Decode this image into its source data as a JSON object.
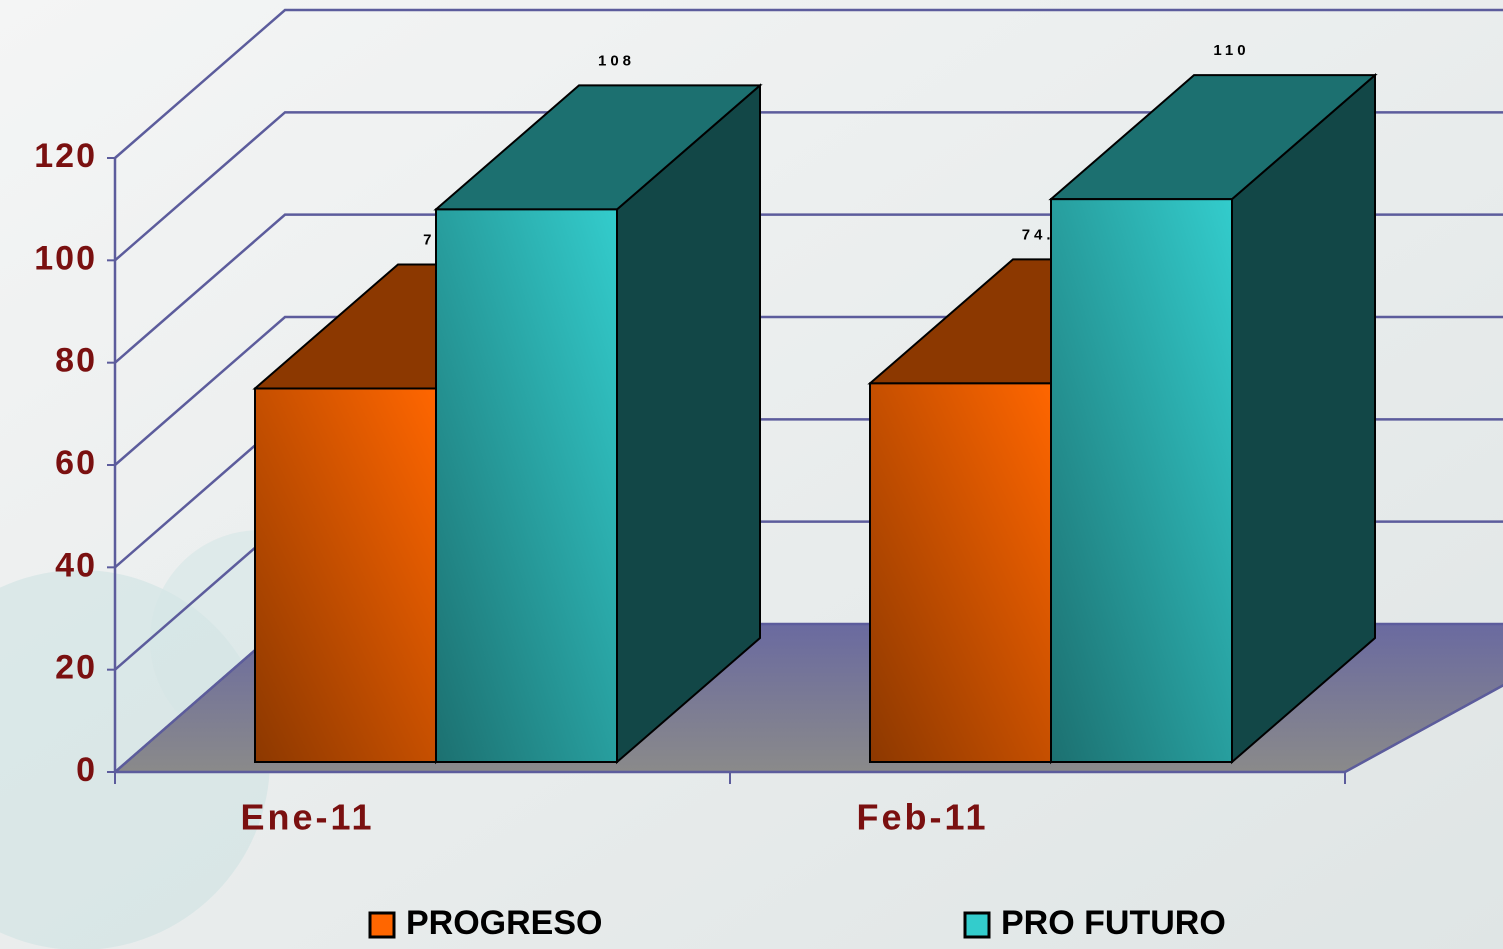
{
  "chart_data": {
    "type": "bar3d",
    "categories": [
      "Ene-11",
      "Feb-11"
    ],
    "series": [
      {
        "name": "PROGRESO",
        "color": "#ff6600",
        "values": [
          73,
          74
        ],
        "value_labels": [
          "73",
          "74.00"
        ]
      },
      {
        "name": "PRO FUTURO",
        "color": "#33cccc",
        "values": [
          108,
          110
        ],
        "value_labels": [
          "108",
          "110"
        ]
      }
    ],
    "ylim": [
      0,
      120
    ],
    "yticks": [
      0,
      20,
      40,
      60,
      80,
      100,
      120
    ],
    "grid": true,
    "legend": "bottom"
  }
}
